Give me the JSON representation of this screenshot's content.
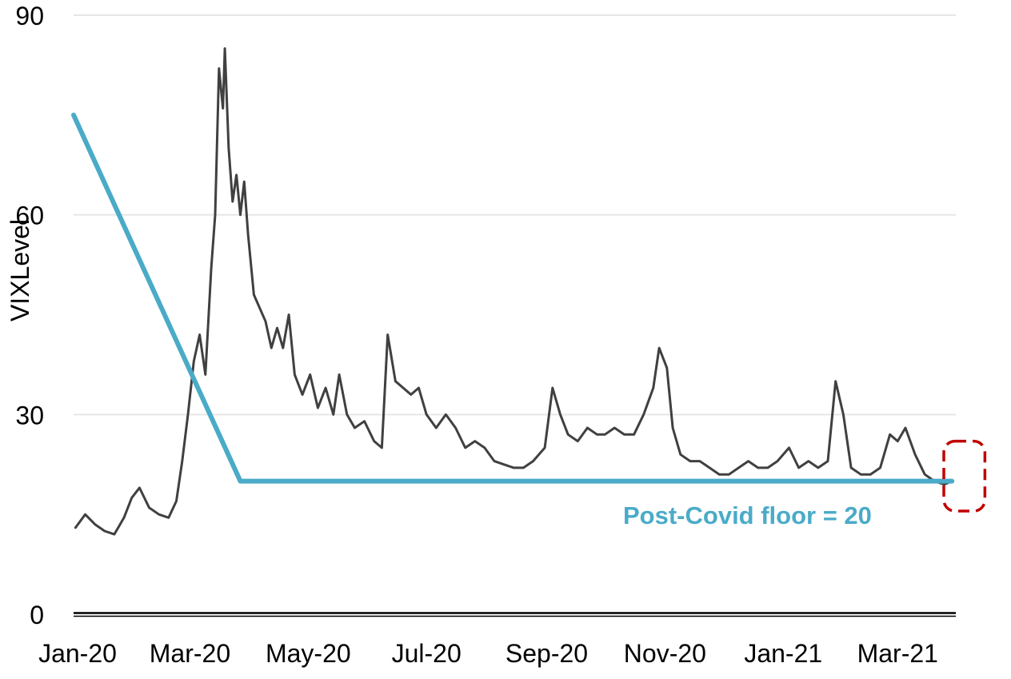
{
  "chart_data": {
    "type": "line",
    "ylabel": "VIXLevel",
    "ylim": [
      0,
      90
    ],
    "yticks": [
      {
        "value": 0,
        "label": "0"
      },
      {
        "value": 30,
        "label": "30"
      },
      {
        "value": 60,
        "label": "60"
      },
      {
        "value": 90,
        "label": "90"
      }
    ],
    "xlim": [
      "2020-01-01",
      "2021-03-31"
    ],
    "xticks": [
      {
        "value": "2020-01-01",
        "label": "Jan-20"
      },
      {
        "value": "2020-03-01",
        "label": "Mar-20"
      },
      {
        "value": "2020-05-01",
        "label": "May-20"
      },
      {
        "value": "2020-07-01",
        "label": "Jul-20"
      },
      {
        "value": "2020-09-01",
        "label": "Sep-20"
      },
      {
        "value": "2020-11-01",
        "label": "Nov-20"
      },
      {
        "value": "2021-01-01",
        "label": "Jan-21"
      },
      {
        "value": "2021-03-01",
        "label": "Mar-21"
      }
    ],
    "grid": true,
    "series": [
      {
        "color": "#404040",
        "points": [
          [
            "2020-01-02",
            13
          ],
          [
            "2020-01-07",
            15
          ],
          [
            "2020-01-12",
            13.5
          ],
          [
            "2020-01-17",
            12.5
          ],
          [
            "2020-01-22",
            12
          ],
          [
            "2020-01-27",
            14.5
          ],
          [
            "2020-01-31",
            17.5
          ],
          [
            "2020-02-04",
            19
          ],
          [
            "2020-02-09",
            16
          ],
          [
            "2020-02-14",
            15
          ],
          [
            "2020-02-19",
            14.5
          ],
          [
            "2020-02-23",
            17
          ],
          [
            "2020-02-26",
            23
          ],
          [
            "2020-02-29",
            30
          ],
          [
            "2020-03-03",
            38
          ],
          [
            "2020-03-06",
            42
          ],
          [
            "2020-03-09",
            36
          ],
          [
            "2020-03-12",
            52
          ],
          [
            "2020-03-14",
            60
          ],
          [
            "2020-03-16",
            82
          ],
          [
            "2020-03-18",
            76
          ],
          [
            "2020-03-19",
            85
          ],
          [
            "2020-03-21",
            70
          ],
          [
            "2020-03-23",
            62
          ],
          [
            "2020-03-25",
            66
          ],
          [
            "2020-03-27",
            60
          ],
          [
            "2020-03-29",
            65
          ],
          [
            "2020-03-31",
            57
          ],
          [
            "2020-04-03",
            48
          ],
          [
            "2020-04-06",
            46
          ],
          [
            "2020-04-09",
            44
          ],
          [
            "2020-04-12",
            40
          ],
          [
            "2020-04-15",
            43
          ],
          [
            "2020-04-18",
            40
          ],
          [
            "2020-04-21",
            45
          ],
          [
            "2020-04-24",
            36
          ],
          [
            "2020-04-28",
            33
          ],
          [
            "2020-05-02",
            36
          ],
          [
            "2020-05-06",
            31
          ],
          [
            "2020-05-10",
            34
          ],
          [
            "2020-05-14",
            30
          ],
          [
            "2020-05-17",
            36
          ],
          [
            "2020-05-21",
            30
          ],
          [
            "2020-05-25",
            28
          ],
          [
            "2020-05-30",
            29
          ],
          [
            "2020-06-04",
            26
          ],
          [
            "2020-06-08",
            25
          ],
          [
            "2020-06-11",
            42
          ],
          [
            "2020-06-15",
            35
          ],
          [
            "2020-06-19",
            34
          ],
          [
            "2020-06-23",
            33
          ],
          [
            "2020-06-27",
            34
          ],
          [
            "2020-07-01",
            30
          ],
          [
            "2020-07-06",
            28
          ],
          [
            "2020-07-11",
            30
          ],
          [
            "2020-07-16",
            28
          ],
          [
            "2020-07-21",
            25
          ],
          [
            "2020-07-26",
            26
          ],
          [
            "2020-07-31",
            25
          ],
          [
            "2020-08-05",
            23
          ],
          [
            "2020-08-10",
            22.5
          ],
          [
            "2020-08-15",
            22
          ],
          [
            "2020-08-20",
            22
          ],
          [
            "2020-08-25",
            23
          ],
          [
            "2020-08-31",
            25
          ],
          [
            "2020-09-04",
            34
          ],
          [
            "2020-09-08",
            30
          ],
          [
            "2020-09-12",
            27
          ],
          [
            "2020-09-17",
            26
          ],
          [
            "2020-09-22",
            28
          ],
          [
            "2020-09-27",
            27
          ],
          [
            "2020-10-01",
            27
          ],
          [
            "2020-10-06",
            28
          ],
          [
            "2020-10-11",
            27
          ],
          [
            "2020-10-16",
            27
          ],
          [
            "2020-10-21",
            30
          ],
          [
            "2020-10-26",
            34
          ],
          [
            "2020-10-29",
            40
          ],
          [
            "2020-11-02",
            37
          ],
          [
            "2020-11-05",
            28
          ],
          [
            "2020-11-09",
            24
          ],
          [
            "2020-11-14",
            23
          ],
          [
            "2020-11-19",
            23
          ],
          [
            "2020-11-24",
            22
          ],
          [
            "2020-11-29",
            21
          ],
          [
            "2020-12-04",
            21
          ],
          [
            "2020-12-09",
            22
          ],
          [
            "2020-12-14",
            23
          ],
          [
            "2020-12-19",
            22
          ],
          [
            "2020-12-24",
            22
          ],
          [
            "2020-12-29",
            23
          ],
          [
            "2021-01-04",
            25
          ],
          [
            "2021-01-09",
            22
          ],
          [
            "2021-01-14",
            23
          ],
          [
            "2021-01-19",
            22
          ],
          [
            "2021-01-24",
            23
          ],
          [
            "2021-01-28",
            35
          ],
          [
            "2021-02-01",
            30
          ],
          [
            "2021-02-05",
            22
          ],
          [
            "2021-02-10",
            21
          ],
          [
            "2021-02-15",
            21
          ],
          [
            "2021-02-20",
            22
          ],
          [
            "2021-02-25",
            27
          ],
          [
            "2021-03-01",
            26
          ],
          [
            "2021-03-05",
            28
          ],
          [
            "2021-03-10",
            24
          ],
          [
            "2021-03-15",
            21
          ],
          [
            "2021-03-20",
            20
          ],
          [
            "2021-03-25",
            19.5
          ],
          [
            "2021-03-29",
            20
          ]
        ]
      },
      {
        "color": "#4AABC8",
        "points": [
          [
            "2020-01-01",
            75
          ],
          [
            "2020-03-27",
            20
          ],
          [
            "2021-03-29",
            20
          ]
        ]
      }
    ],
    "annotations": [
      {
        "text": "Post-Covid floor = 20",
        "color": "#4AABC8"
      }
    ],
    "highlight_box": {
      "x": [
        "2021-03-28",
        "2021-04-15"
      ],
      "y": [
        15.5,
        26
      ],
      "color": "#C00000"
    }
  }
}
